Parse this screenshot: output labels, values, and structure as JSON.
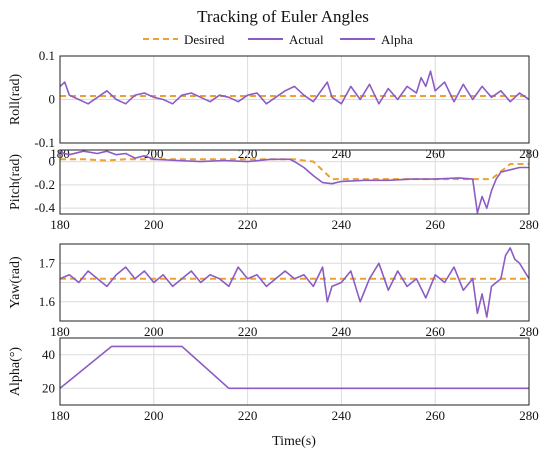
{
  "figure": {
    "title": "Tracking of Euler Angles",
    "xlabel": "Time(s)"
  },
  "legend": {
    "placement": "top-center",
    "items": [
      {
        "label": "Desired",
        "style": "dashed",
        "color": "#F0A030"
      },
      {
        "label": "Actual",
        "style": "solid",
        "color": "#8C5CC4"
      },
      {
        "label": "Alpha",
        "style": "solid",
        "color": "#8C5CC4"
      }
    ]
  },
  "colors": {
    "desired": "#F0A030",
    "actual": "#8C5CC4",
    "grid": "#dcdcdc"
  },
  "chart_data": [
    {
      "type": "line",
      "ylabel": "Roll(rad)",
      "xlim": [
        180,
        280
      ],
      "ylim": [
        -0.1,
        0.1
      ],
      "xticks": [
        180,
        200,
        220,
        240,
        260,
        280
      ],
      "yticks": [
        -0.1,
        0,
        0.1
      ],
      "ytick_labels": [
        "-0.1",
        "0",
        "0.1"
      ],
      "grid": true,
      "series": [
        {
          "name": "Desired",
          "style": "dashed",
          "x": [
            180,
            280
          ],
          "y": [
            0.008,
            0.008
          ]
        },
        {
          "name": "Actual",
          "style": "solid",
          "x": [
            180,
            181,
            182,
            184,
            186,
            188,
            190,
            192,
            194,
            196,
            198,
            200,
            202,
            204,
            206,
            208,
            210,
            212,
            214,
            216,
            218,
            220,
            222,
            224,
            226,
            228,
            230,
            232,
            234,
            236,
            237,
            238,
            240,
            242,
            244,
            246,
            248,
            250,
            252,
            254,
            256,
            257,
            258,
            259,
            260,
            262,
            264,
            266,
            268,
            270,
            272,
            274,
            276,
            278,
            280
          ],
          "y": [
            0.03,
            0.04,
            0.01,
            0.0,
            -0.01,
            0.005,
            0.02,
            0.0,
            -0.01,
            0.01,
            0.015,
            0.005,
            0.0,
            -0.01,
            0.01,
            0.015,
            0.005,
            -0.005,
            0.01,
            0.005,
            -0.005,
            0.01,
            0.015,
            -0.01,
            0.005,
            0.02,
            0.03,
            0.01,
            -0.005,
            0.025,
            0.04,
            0.005,
            -0.01,
            0.03,
            0.0,
            0.035,
            -0.01,
            0.025,
            0.0,
            0.03,
            0.015,
            0.05,
            0.03,
            0.065,
            0.02,
            0.04,
            -0.005,
            0.035,
            0.0,
            0.03,
            0.005,
            0.02,
            -0.005,
            0.015,
            0.0
          ]
        }
      ]
    },
    {
      "type": "line",
      "ylabel": "Pitch(rad)",
      "xlim": [
        180,
        280
      ],
      "ylim": [
        -0.45,
        0.1
      ],
      "xticks": [
        180,
        200,
        220,
        240,
        260,
        280
      ],
      "yticks": [
        -0.4,
        -0.2,
        0
      ],
      "ytick_labels": [
        "-0.4",
        "-0.2",
        "0"
      ],
      "grid": true,
      "series": [
        {
          "name": "Desired",
          "style": "dashed",
          "x": [
            180,
            185,
            190,
            194,
            230,
            234,
            238,
            240,
            250,
            260,
            272,
            276,
            280
          ],
          "y": [
            0.02,
            0.02,
            0.01,
            0.02,
            0.02,
            0.0,
            -0.15,
            -0.15,
            -0.15,
            -0.15,
            -0.15,
            -0.02,
            -0.02
          ]
        },
        {
          "name": "Actual",
          "style": "solid",
          "x": [
            180,
            182,
            185,
            188,
            190,
            192,
            194,
            196,
            198,
            200,
            205,
            210,
            215,
            220,
            225,
            229,
            230,
            232,
            234,
            236,
            238,
            240,
            245,
            250,
            255,
            260,
            265,
            268,
            269,
            270,
            271,
            272,
            273,
            274,
            276,
            278,
            280
          ],
          "y": [
            0.08,
            0.06,
            0.09,
            0.07,
            0.09,
            0.06,
            0.07,
            0.03,
            0.05,
            0.02,
            0.01,
            0.0,
            0.01,
            0.0,
            0.02,
            0.02,
            0.0,
            -0.05,
            -0.12,
            -0.18,
            -0.19,
            -0.17,
            -0.16,
            -0.16,
            -0.15,
            -0.15,
            -0.14,
            -0.15,
            -0.44,
            -0.3,
            -0.4,
            -0.25,
            -0.15,
            -0.09,
            -0.07,
            -0.05,
            -0.05
          ]
        }
      ]
    },
    {
      "type": "line",
      "ylabel": "Yaw(rad)",
      "xlim": [
        180,
        280
      ],
      "ylim": [
        1.55,
        1.75
      ],
      "xticks": [
        180,
        200,
        220,
        240,
        260,
        280
      ],
      "yticks": [
        1.6,
        1.65,
        1.7
      ],
      "ytick_labels": [
        "1.6",
        "",
        "1.7"
      ],
      "grid": true,
      "series": [
        {
          "name": "Desired",
          "style": "dashed",
          "x": [
            180,
            280
          ],
          "y": [
            1.66,
            1.66
          ]
        },
        {
          "name": "Actual",
          "style": "solid",
          "x": [
            180,
            182,
            184,
            186,
            188,
            190,
            192,
            194,
            196,
            198,
            200,
            202,
            204,
            206,
            208,
            210,
            212,
            214,
            216,
            218,
            220,
            222,
            224,
            226,
            228,
            230,
            232,
            234,
            236,
            237,
            238,
            240,
            242,
            244,
            246,
            248,
            250,
            252,
            254,
            256,
            258,
            260,
            262,
            264,
            266,
            268,
            269,
            270,
            271,
            272,
            274,
            275,
            276,
            277,
            278,
            280
          ],
          "y": [
            1.66,
            1.67,
            1.65,
            1.68,
            1.66,
            1.64,
            1.67,
            1.69,
            1.66,
            1.68,
            1.65,
            1.67,
            1.64,
            1.66,
            1.68,
            1.65,
            1.67,
            1.66,
            1.64,
            1.69,
            1.66,
            1.67,
            1.64,
            1.66,
            1.68,
            1.66,
            1.67,
            1.64,
            1.69,
            1.6,
            1.64,
            1.65,
            1.68,
            1.6,
            1.66,
            1.7,
            1.63,
            1.68,
            1.64,
            1.66,
            1.61,
            1.67,
            1.65,
            1.69,
            1.63,
            1.66,
            1.57,
            1.62,
            1.56,
            1.64,
            1.66,
            1.72,
            1.74,
            1.71,
            1.7,
            1.66
          ]
        }
      ]
    },
    {
      "type": "line",
      "ylabel": "Alpha(°)",
      "xlim": [
        180,
        280
      ],
      "ylim": [
        10,
        50
      ],
      "xticks": [
        180,
        200,
        220,
        240,
        260,
        280
      ],
      "yticks": [
        20,
        40
      ],
      "ytick_labels": [
        "20",
        "40"
      ],
      "grid": true,
      "series": [
        {
          "name": "Alpha",
          "style": "solid",
          "x": [
            180,
            191,
            206,
            216,
            280
          ],
          "y": [
            20,
            45,
            45,
            20,
            20
          ]
        }
      ]
    }
  ]
}
